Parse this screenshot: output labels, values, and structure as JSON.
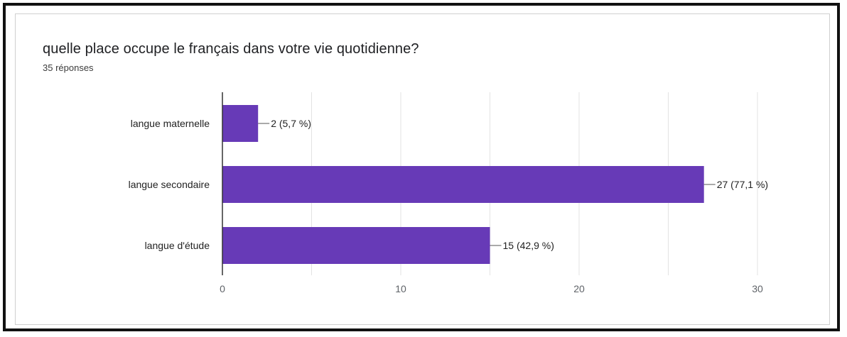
{
  "colors": {
    "bar": "#673ab7",
    "grid": "#e3e3e3",
    "axis": "#333333",
    "label": "#222222",
    "tick": "#5f6368"
  },
  "chart_data": {
    "type": "bar",
    "orientation": "horizontal",
    "title": "quelle place occupe le français dans votre vie quotidienne?",
    "subtitle": "35 réponses",
    "categories": [
      "langue maternelle",
      "langue secondaire",
      "langue d'étude"
    ],
    "values": [
      2,
      27,
      15
    ],
    "data_labels": [
      "2 (5,7 %)",
      "27 (77,1 %)",
      "15 (42,9 %)"
    ],
    "xlim": [
      0,
      30
    ],
    "xticks": [
      0,
      10,
      20,
      30
    ],
    "grid": true,
    "legend": "none"
  }
}
